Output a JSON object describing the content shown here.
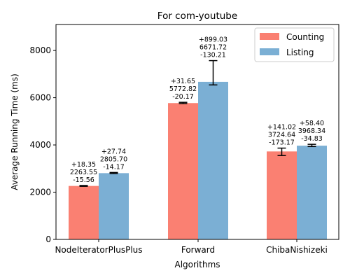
{
  "chart_data": {
    "type": "bar",
    "title": "For com-youtube",
    "xlabel": "Algorithms",
    "ylabel": "Average Running Time (ms)",
    "categories": [
      "NodeIteratorPlusPlus",
      "Forward",
      "ChibaNishizeki"
    ],
    "ylim": [
      0,
      9100
    ],
    "yticks": [
      0,
      2000,
      4000,
      6000,
      8000
    ],
    "grid": false,
    "legend_position": "upper-right",
    "series": [
      {
        "name": "Counting",
        "color": "#fa8072",
        "values": [
          2263.55,
          5772.82,
          3724.64
        ],
        "err_plus": [
          18.35,
          31.65,
          141.02
        ],
        "err_minus": [
          15.56,
          20.17,
          173.17
        ],
        "labels": [
          [
            "+18.35",
            "2263.55",
            "-15.56"
          ],
          [
            "+31.65",
            "5772.82",
            "-20.17"
          ],
          [
            "+141.02",
            "3724.64",
            "-173.17"
          ]
        ]
      },
      {
        "name": "Listing",
        "color": "#7bafd4",
        "values": [
          2805.7,
          6671.72,
          3968.34
        ],
        "err_plus": [
          27.74,
          899.03,
          58.4
        ],
        "err_minus": [
          14.17,
          130.21,
          34.83
        ],
        "labels": [
          [
            "+27.74",
            "2805.70",
            "-14.17"
          ],
          [
            "+899.03",
            "6671.72",
            "-130.21"
          ],
          [
            "+58.40",
            "3968.34",
            "-34.83"
          ]
        ]
      }
    ]
  }
}
